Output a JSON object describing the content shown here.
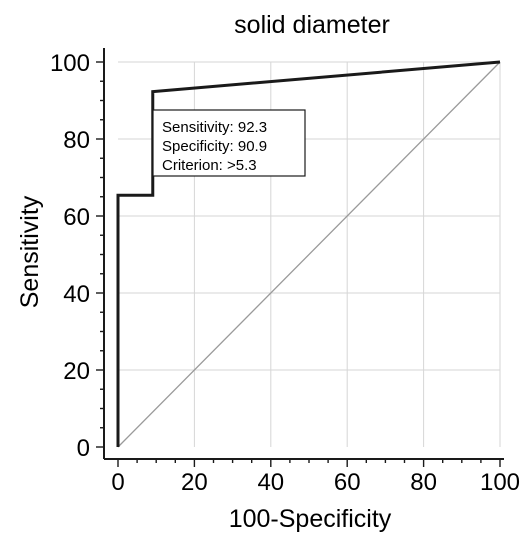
{
  "chart_data": {
    "type": "line",
    "title": "solid diameter",
    "xlabel": "100-Specificity",
    "ylabel": "Sensitivity",
    "xlim": [
      0,
      100
    ],
    "ylim": [
      0,
      100
    ],
    "x_ticks": [
      "0",
      "20",
      "40",
      "60",
      "80",
      "100"
    ],
    "y_ticks": [
      "0",
      "20",
      "40",
      "60",
      "80",
      "100"
    ],
    "grid": true,
    "series": [
      {
        "kind": "roc-curve",
        "x": [
          0,
          0,
          9.1,
          9.1,
          100
        ],
        "y": [
          0,
          65.4,
          65.4,
          92.3,
          100
        ]
      },
      {
        "kind": "diagonal-reference",
        "x": [
          0,
          100
        ],
        "y": [
          0,
          100
        ]
      }
    ],
    "annotation": {
      "lines": [
        "Sensitivity: 92.3",
        "Specificity: 90.9",
        "Criterion: >5.3"
      ]
    }
  }
}
